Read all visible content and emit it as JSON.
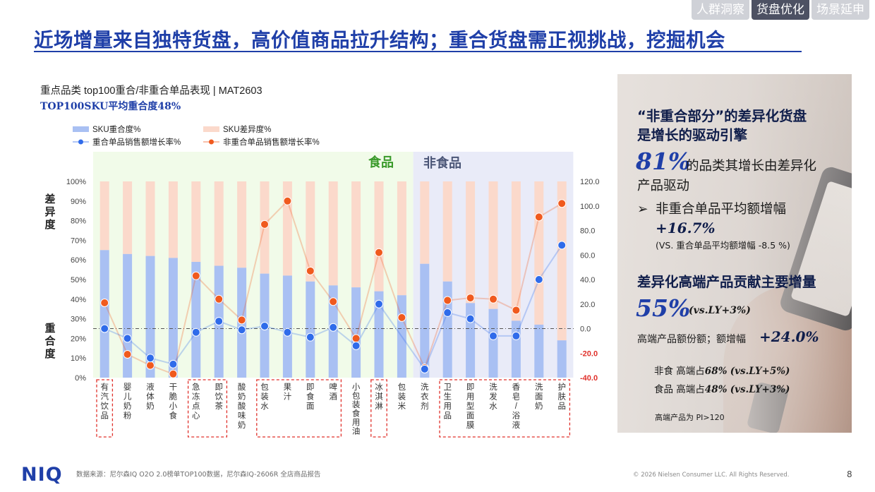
{
  "tabs": [
    {
      "label": "人群洞察",
      "active": false
    },
    {
      "label": "货盘优化",
      "active": true
    },
    {
      "label": "场景延申",
      "active": false
    }
  ],
  "slide_title": "近场增量来自独特货盘，高价值商品拉升结构；重合货盘需正视挑战，挖掘机会",
  "chart_data": {
    "type": "bar",
    "title": "重点品类 top100重合/非重合单品表现 | MAT2603",
    "subtitle": "TOP100SKU平均重合度48%",
    "legend": [
      {
        "name": "SKU重合度%",
        "color": "#a9c0f3",
        "kind": "bar"
      },
      {
        "name": "SKU差异度%",
        "color": "#fbd9cb",
        "kind": "bar"
      },
      {
        "name": "重合单品销售额增长率%",
        "color": "#2f6bea",
        "kind": "line"
      },
      {
        "name": "非重合单品销售额增长率%",
        "color": "#f05a1e",
        "kind": "line"
      }
    ],
    "group_labels": [
      {
        "label": "食品",
        "color": "#3a9a2a",
        "background": "#f1fbe9"
      },
      {
        "label": "非食品",
        "color": "#4b5677",
        "background": "#e9ebf8"
      }
    ],
    "categories": [
      "有汽饮品",
      "婴儿奶粉",
      "液体奶",
      "干脆小食",
      "急冻点心",
      "即饮茶",
      "酸奶酸味奶",
      "包装水",
      "果汁",
      "即食面",
      "啤酒",
      "小包装食用油",
      "冰淇淋",
      "包装米",
      "洗衣剂",
      "卫生用品",
      "即用型面膜",
      "洗发水",
      "香皂/浴液",
      "洗面奶",
      "护肤品"
    ],
    "category_group": [
      0,
      0,
      0,
      0,
      0,
      0,
      0,
      0,
      0,
      0,
      0,
      0,
      0,
      0,
      1,
      1,
      1,
      1,
      1,
      1,
      1
    ],
    "series": [
      {
        "name": "SKU重合度%",
        "axis": "left",
        "values": [
          65,
          63,
          62,
          61,
          59,
          57,
          56,
          53,
          52,
          49,
          47,
          46,
          44,
          42,
          58,
          49,
          38,
          35,
          29,
          27,
          19
        ]
      },
      {
        "name": "SKU差异度%",
        "axis": "left",
        "values": [
          35,
          37,
          38,
          39,
          41,
          43,
          44,
          47,
          48,
          51,
          53,
          54,
          56,
          58,
          42,
          51,
          62,
          65,
          71,
          73,
          81
        ]
      },
      {
        "name": "重合单品销售额增长率%",
        "axis": "right",
        "values": [
          0,
          -8,
          -24,
          -29,
          -3,
          6,
          -1,
          2,
          -3,
          -7,
          1,
          -14,
          20,
          null,
          -33,
          13,
          8,
          -6,
          -6,
          40,
          68
        ]
      },
      {
        "name": "非重合单品销售额增长率%",
        "axis": "right",
        "values": [
          21,
          -21,
          -30,
          -37,
          43,
          24,
          7,
          85,
          104,
          47,
          22,
          -8,
          62,
          9,
          -32,
          23,
          25,
          24,
          15,
          91,
          102
        ]
      }
    ],
    "left_axis": {
      "title_top": "差异度",
      "title_bottom": "重合度",
      "ticks": [
        "0%",
        "10%",
        "20%",
        "30%",
        "40%",
        "50%",
        "60%",
        "70%",
        "80%",
        "90%",
        "100%"
      ],
      "ylim": [
        0,
        100
      ]
    },
    "right_axis": {
      "ticks": [
        "-40.0",
        "-20.0",
        "0.0",
        "20.0",
        "40.0",
        "60.0",
        "80.0",
        "100.0",
        "120.0"
      ],
      "ylim": [
        -40,
        120
      ]
    },
    "highlight_groups": [
      [
        0
      ],
      [
        4,
        5
      ],
      [
        7,
        8,
        9,
        10
      ],
      [
        12
      ],
      [
        15,
        16,
        17,
        18,
        19,
        20
      ]
    ],
    "grid": false,
    "legend_position": "top-left"
  },
  "panel": {
    "headline_line1": "“非重合部分”的差异化货盘",
    "headline_line2": "是增长的驱动引擎",
    "stat1_value": "81%",
    "stat1_text_a": "的品类其增长由差异化",
    "stat1_text_b": "产品驱动",
    "bullet_marker": "➢",
    "bullet_label": "非重合单品平均额增幅",
    "bullet_value": "+16.7%",
    "bullet_note": "(VS. 重合单品平均额增幅 -8.5 %)",
    "headline2": "差异化高端产品贡献主要增量",
    "stat2_value": "55%",
    "stat2_sub": "(vs.LY+3%)",
    "stat2_label": "高端产品额份额；额增幅",
    "stat2_growth": "+24.0%",
    "nonfood_label": "非食 高端占",
    "nonfood_value": "68%",
    "nonfood_sub": "(vs.LY+5%)",
    "food_label": "食品 高端占",
    "food_value": "48%",
    "food_sub": "(vs.LY+3%)",
    "footnote": "高端产品为 PI>120"
  },
  "footer": {
    "logo": "NIQ",
    "source": "数据来源：尼尔森IQ O2O 2.0榜单TOP100数据，尼尔森IQ-2606R 全店商品报告",
    "copyright": "© 2026 Nielsen Consumer LLC. All Rights Reserved.",
    "page": "8"
  }
}
